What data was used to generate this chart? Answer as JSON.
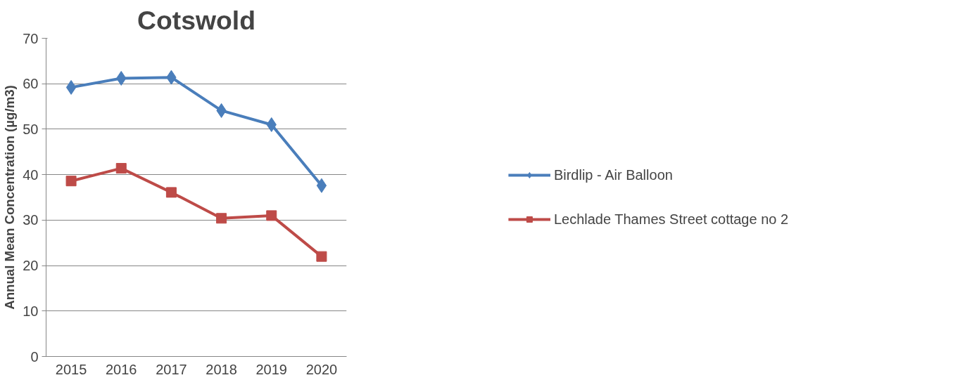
{
  "chart_data": {
    "type": "line",
    "title": "Cotswold",
    "ylabel": "Annual Mean Concentration (µg/m3)",
    "categories": [
      "2015",
      "2016",
      "2017",
      "2018",
      "2019",
      "2020"
    ],
    "series": [
      {
        "name": "Birdlip - Air Balloon",
        "color": "#4a7ebb",
        "marker": "diamond",
        "values": [
          59.2,
          61.2,
          61.4,
          54.1,
          51.0,
          37.6
        ]
      },
      {
        "name": "Lechlade Thames Street cottage no 2",
        "color": "#be4b48",
        "marker": "square",
        "values": [
          38.6,
          41.4,
          36.1,
          30.4,
          31.0,
          22.0
        ]
      }
    ],
    "ylim": [
      0,
      70
    ],
    "yticks": [
      0,
      10,
      20,
      30,
      40,
      50,
      60,
      70
    ],
    "grid": "y",
    "legend": "right",
    "line_style": "solid"
  }
}
